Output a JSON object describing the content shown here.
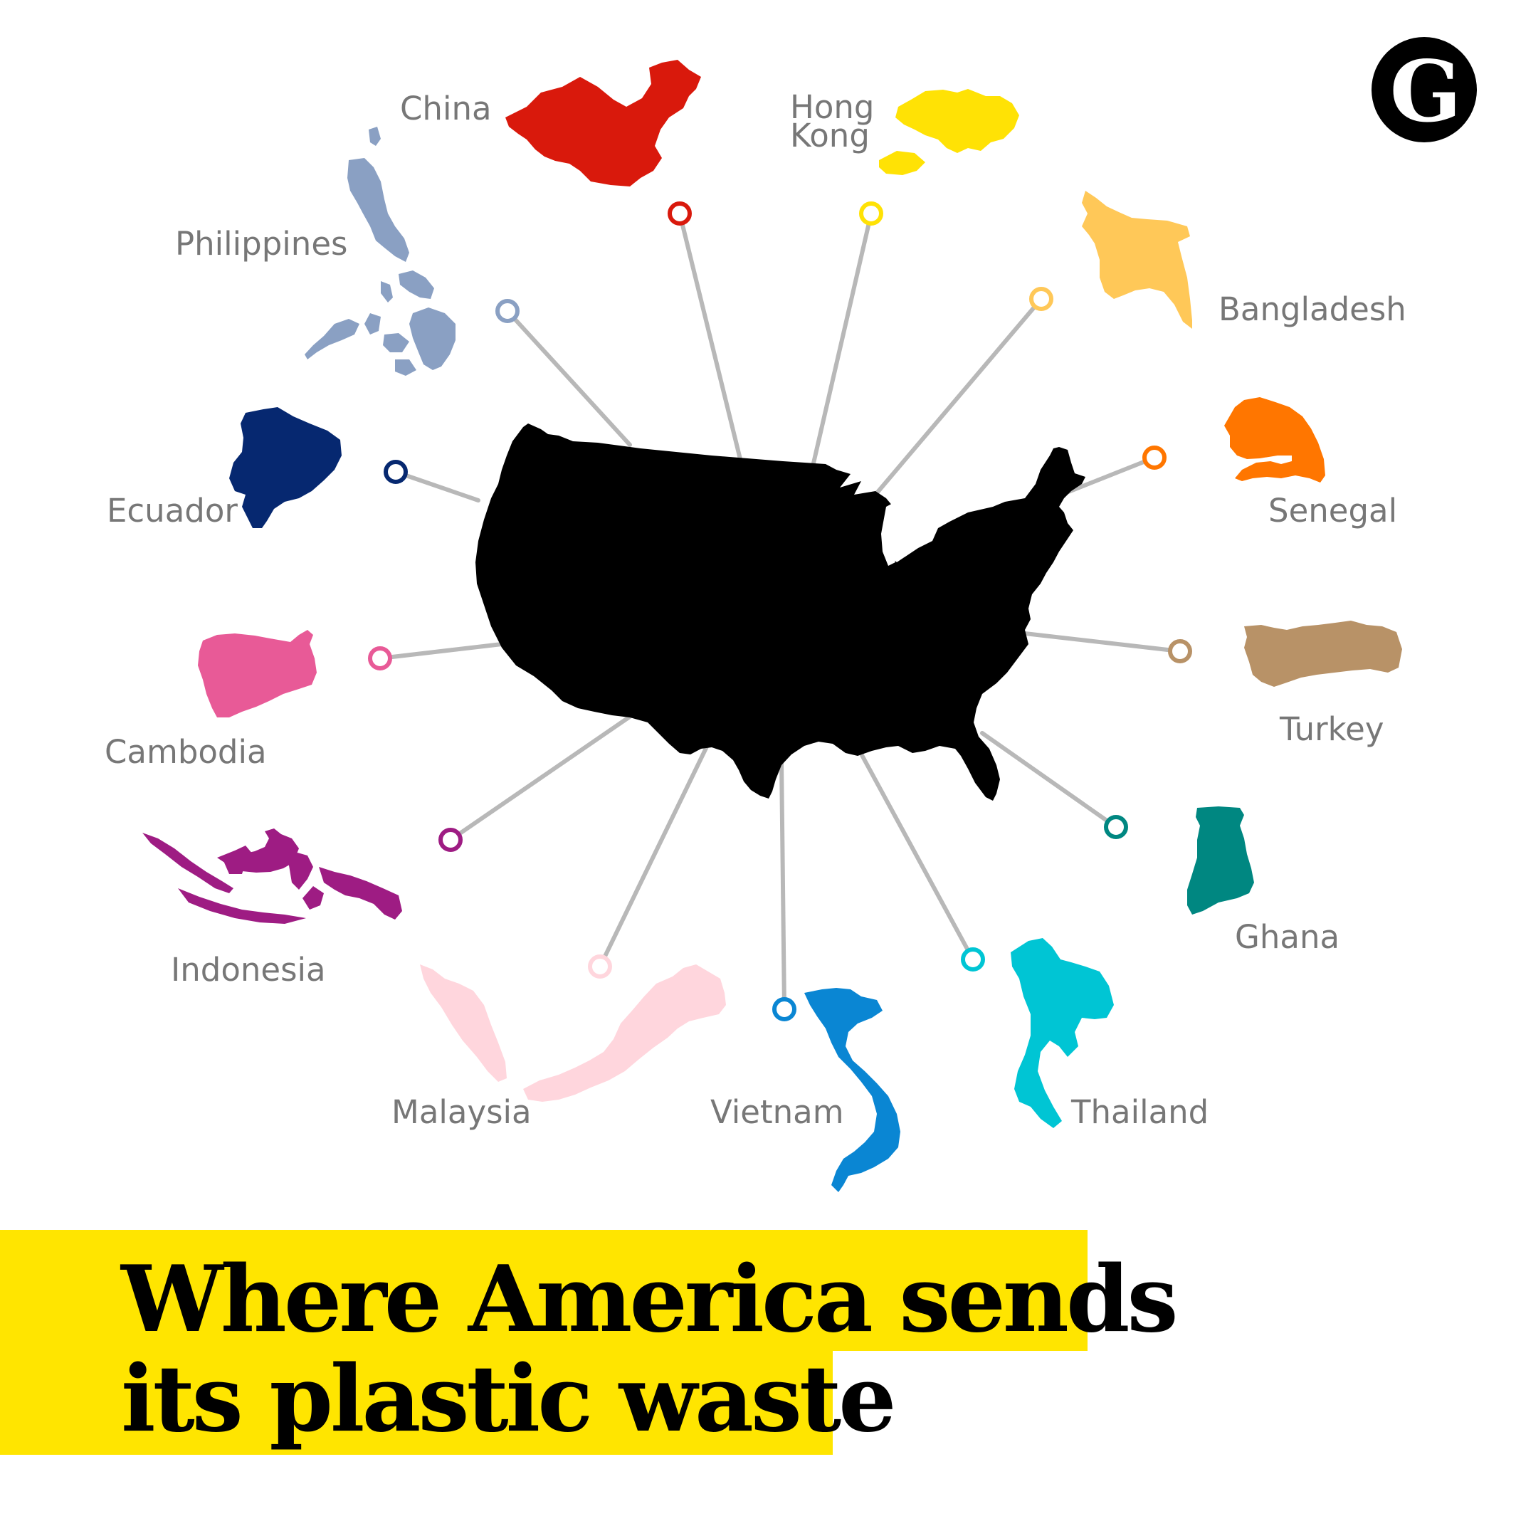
{
  "headline": {
    "line1": "Where America sends",
    "line2": "its plastic waste",
    "highlight_color": "#ffe500"
  },
  "logo": {
    "letter": "G",
    "icon": "guardian-logo-icon"
  },
  "hub": {
    "name": "United States",
    "icon": "usa-map-icon",
    "color": "#000000"
  },
  "connector_color": "#b8b8b8",
  "destinations": [
    {
      "key": "china",
      "label": "China",
      "color": "#d9190c"
    },
    {
      "key": "hong-kong",
      "label_lines": [
        "Hong",
        "Kong"
      ],
      "color": "#ffe205"
    },
    {
      "key": "bangladesh",
      "label": "Bangladesh",
      "color": "#ffc858"
    },
    {
      "key": "senegal",
      "label": "Senegal",
      "color": "#ff7600"
    },
    {
      "key": "turkey",
      "label": "Turkey",
      "color": "#b89267"
    },
    {
      "key": "ghana",
      "label": "Ghana",
      "color": "#008781"
    },
    {
      "key": "thailand",
      "label": "Thailand",
      "color": "#00c5d4"
    },
    {
      "key": "vietnam",
      "label": "Vietnam",
      "color": "#0a86d3"
    },
    {
      "key": "malaysia",
      "label": "Malaysia",
      "color": "#ffd6dd"
    },
    {
      "key": "indonesia",
      "label": "Indonesia",
      "color": "#9e1c83"
    },
    {
      "key": "cambodia",
      "label": "Cambodia",
      "color": "#e85a97"
    },
    {
      "key": "ecuador",
      "label": "Ecuador",
      "color": "#062870"
    },
    {
      "key": "philippines",
      "label": "Philippines",
      "color": "#8aa0c3"
    }
  ]
}
